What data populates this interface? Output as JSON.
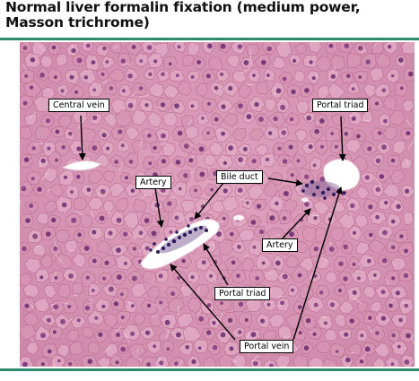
{
  "title": "Normal liver formalin fixation (medium power,\nMasson trichrome)",
  "labels": {
    "central_vein": "Central vein",
    "portal_triad_top": "Portal triad",
    "artery_left": "Artery",
    "bile_duct": "Bile duct",
    "artery_right": "Artery",
    "portal_triad_bottom": "Portal triad",
    "portal_vein": "Portal vein"
  },
  "colors": {
    "accent_rule": "#2e8b6e",
    "tissue_pink": "#d89ab6",
    "nucleus_purple": "#6a2a6e"
  }
}
